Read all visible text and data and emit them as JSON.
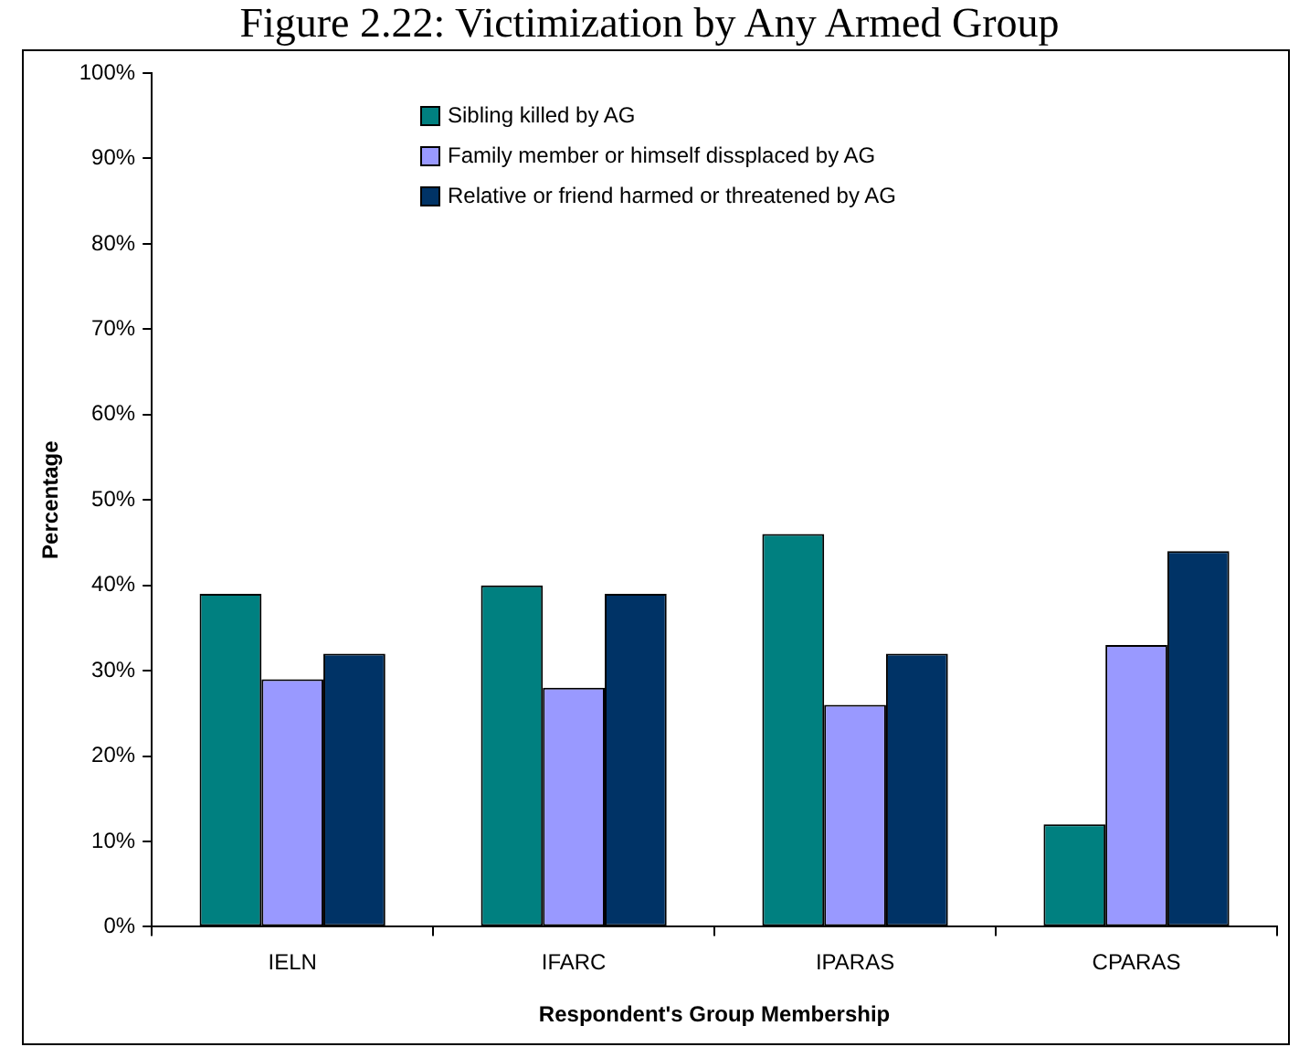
{
  "chart_data": {
    "type": "bar",
    "title": "Figure 2.22: Victimization by Any Armed Group",
    "xlabel": "Respondent's Group Membership",
    "ylabel": "Percentage",
    "categories": [
      "IELN",
      "IFARC",
      "IPARAS",
      "CPARAS"
    ],
    "series": [
      {
        "name": "Sibling killed by AG",
        "color": "#008080",
        "values": [
          39,
          40,
          46,
          12
        ]
      },
      {
        "name": "Family member or himself dissplaced by AG",
        "color": "#9999ff",
        "values": [
          29,
          28,
          26,
          33
        ]
      },
      {
        "name": "Relative or friend harmed or threatened by AG",
        "color": "#003366",
        "values": [
          32,
          39,
          32,
          44
        ]
      }
    ],
    "ylim": [
      0,
      100
    ],
    "yticks": [
      {
        "value": 0,
        "label": "0%"
      },
      {
        "value": 10,
        "label": "10%"
      },
      {
        "value": 20,
        "label": "20%"
      },
      {
        "value": 30,
        "label": "30%"
      },
      {
        "value": 40,
        "label": "40%"
      },
      {
        "value": 50,
        "label": "50%"
      },
      {
        "value": 60,
        "label": "60%"
      },
      {
        "value": 70,
        "label": "70%"
      },
      {
        "value": 80,
        "label": "80%"
      },
      {
        "value": 90,
        "label": "90%"
      },
      {
        "value": 100,
        "label": "100%"
      }
    ],
    "grid": false,
    "legend": "top"
  }
}
